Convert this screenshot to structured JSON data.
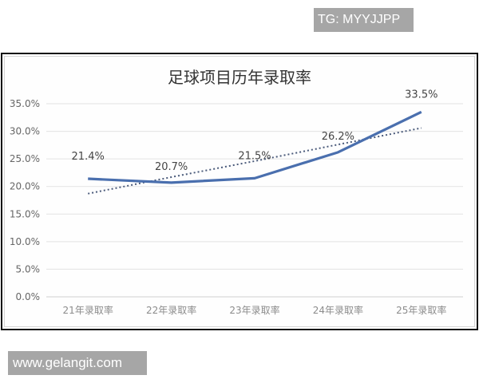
{
  "watermarks": {
    "top": "TG: MYYJJPP",
    "bottom": "www.gelangit.com"
  },
  "chart_data": {
    "type": "line",
    "title": "足球项目历年录取率",
    "categories": [
      "21年录取率",
      "22年录取率",
      "23年录取率",
      "24年录取率",
      "25年录取率"
    ],
    "series": [
      {
        "name": "录取率",
        "values": [
          21.4,
          20.7,
          21.5,
          26.2,
          33.5
        ],
        "labels": [
          "21.4%",
          "20.7%",
          "21.5%",
          "26.2%",
          "33.5%"
        ],
        "color": "#4a6fae",
        "style": "solid"
      },
      {
        "name": "趋势线",
        "values": [
          18.7,
          21.7,
          24.6,
          27.6,
          30.6
        ],
        "color": "#4a5a7a",
        "style": "dotted",
        "type": "linear trendline"
      }
    ],
    "yticks": [
      "0.0%",
      "5.0%",
      "10.0%",
      "15.0%",
      "20.0%",
      "25.0%",
      "30.0%",
      "35.0%"
    ],
    "ylim": [
      0,
      35
    ],
    "xlabel": "",
    "ylabel": "",
    "grid": true,
    "legend": "none"
  }
}
